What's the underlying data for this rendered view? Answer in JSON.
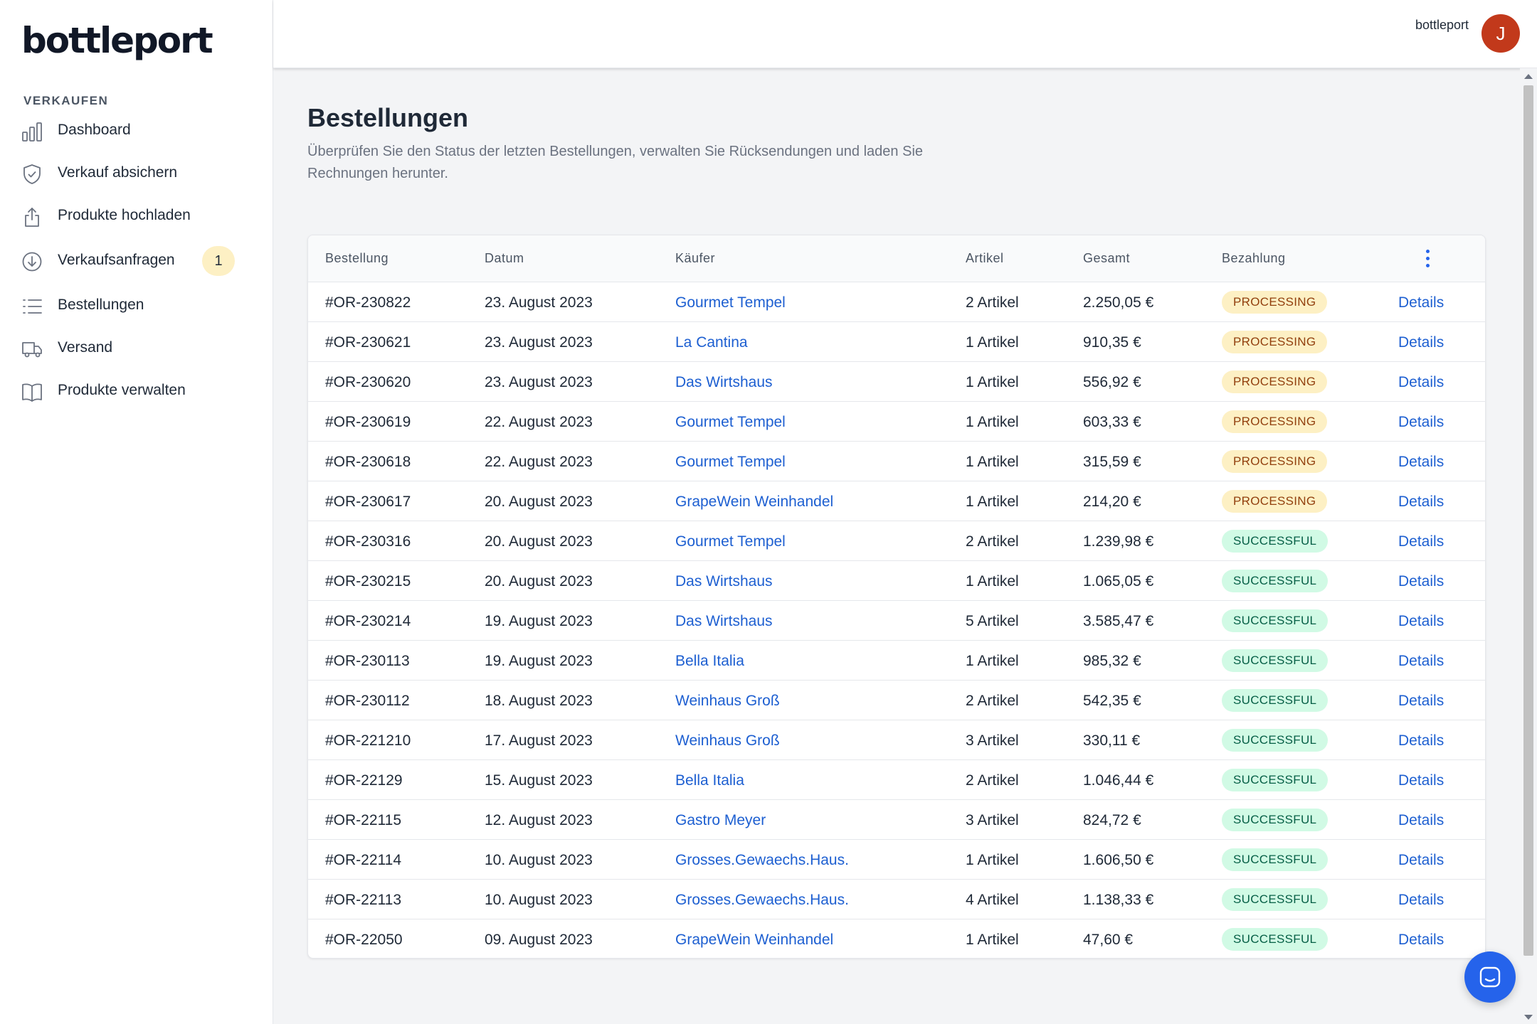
{
  "app": {
    "logo": "bottleport",
    "user_name": "bottleport",
    "avatar_initial": "J",
    "accent_color": "#2563eb",
    "avatar_color": "#c2391b"
  },
  "sidebar": {
    "section_label": "VERKAUFEN",
    "items": [
      {
        "label": "Dashboard",
        "icon": "bar-chart-icon"
      },
      {
        "label": "Verkauf absichern",
        "icon": "shield-check-icon"
      },
      {
        "label": "Produkte hochladen",
        "icon": "upload-icon"
      },
      {
        "label": "Verkaufsanfragen",
        "icon": "arrow-down-circle-icon",
        "badge": "1"
      },
      {
        "label": "Bestellungen",
        "icon": "list-icon"
      },
      {
        "label": "Versand",
        "icon": "truck-icon"
      },
      {
        "label": "Produkte verwalten",
        "icon": "book-icon"
      }
    ]
  },
  "page": {
    "title": "Bestellungen",
    "description": "Überprüfen Sie den Status der letzten Bestellungen, verwalten Sie Rücksendungen und laden Sie Rechnungen herunter."
  },
  "table": {
    "headers": {
      "order": "Bestellung",
      "date": "Datum",
      "buyer": "Käufer",
      "items": "Artikel",
      "total": "Gesamt",
      "payment": "Bezahlung"
    },
    "rows": [
      {
        "order": "#OR-230822",
        "date": "23. August 2023",
        "buyer": "Gourmet Tempel",
        "items": "2 Artikel",
        "total": "2.250,05 €",
        "status": "PROCESSING",
        "action": "Details"
      },
      {
        "order": "#OR-230621",
        "date": "23. August 2023",
        "buyer": "La Cantina",
        "items": "1 Artikel",
        "total": "910,35 €",
        "status": "PROCESSING",
        "action": "Details"
      },
      {
        "order": "#OR-230620",
        "date": "23. August 2023",
        "buyer": "Das Wirtshaus",
        "items": "1 Artikel",
        "total": "556,92 €",
        "status": "PROCESSING",
        "action": "Details"
      },
      {
        "order": "#OR-230619",
        "date": "22. August 2023",
        "buyer": "Gourmet Tempel",
        "items": "1 Artikel",
        "total": "603,33 €",
        "status": "PROCESSING",
        "action": "Details"
      },
      {
        "order": "#OR-230618",
        "date": "22. August 2023",
        "buyer": "Gourmet Tempel",
        "items": "1 Artikel",
        "total": "315,59 €",
        "status": "PROCESSING",
        "action": "Details"
      },
      {
        "order": "#OR-230617",
        "date": "20. August 2023",
        "buyer": "GrapeWein Weinhandel",
        "items": "1 Artikel",
        "total": "214,20 €",
        "status": "PROCESSING",
        "action": "Details"
      },
      {
        "order": "#OR-230316",
        "date": "20. August 2023",
        "buyer": "Gourmet Tempel",
        "items": "2 Artikel",
        "total": "1.239,98 €",
        "status": "SUCCESSFUL",
        "action": "Details"
      },
      {
        "order": "#OR-230215",
        "date": "20. August 2023",
        "buyer": "Das Wirtshaus",
        "items": "1 Artikel",
        "total": "1.065,05 €",
        "status": "SUCCESSFUL",
        "action": "Details"
      },
      {
        "order": "#OR-230214",
        "date": "19. August 2023",
        "buyer": "Das Wirtshaus",
        "items": "5 Artikel",
        "total": "3.585,47 €",
        "status": "SUCCESSFUL",
        "action": "Details"
      },
      {
        "order": "#OR-230113",
        "date": "19. August 2023",
        "buyer": "Bella Italia",
        "items": "1 Artikel",
        "total": "985,32 €",
        "status": "SUCCESSFUL",
        "action": "Details"
      },
      {
        "order": "#OR-230112",
        "date": "18. August 2023",
        "buyer": "Weinhaus Groß",
        "items": "2 Artikel",
        "total": "542,35 €",
        "status": "SUCCESSFUL",
        "action": "Details"
      },
      {
        "order": "#OR-221210",
        "date": "17. August 2023",
        "buyer": "Weinhaus Groß",
        "items": "3 Artikel",
        "total": "330,11 €",
        "status": "SUCCESSFUL",
        "action": "Details"
      },
      {
        "order": "#OR-22129",
        "date": "15. August 2023",
        "buyer": "Bella Italia",
        "items": "2 Artikel",
        "total": "1.046,44 €",
        "status": "SUCCESSFUL",
        "action": "Details"
      },
      {
        "order": "#OR-22115",
        "date": "12. August 2023",
        "buyer": "Gastro Meyer",
        "items": "3 Artikel",
        "total": "824,72 €",
        "status": "SUCCESSFUL",
        "action": "Details"
      },
      {
        "order": "#OR-22114",
        "date": "10. August 2023",
        "buyer": "Grosses.Gewaechs.Haus.",
        "items": "1 Artikel",
        "total": "1.606,50 €",
        "status": "SUCCESSFUL",
        "action": "Details"
      },
      {
        "order": "#OR-22113",
        "date": "10. August 2023",
        "buyer": "Grosses.Gewaechs.Haus.",
        "items": "4 Artikel",
        "total": "1.138,33 €",
        "status": "SUCCESSFUL",
        "action": "Details"
      },
      {
        "order": "#OR-22050",
        "date": "09. August 2023",
        "buyer": "GrapeWein Weinhandel",
        "items": "1 Artikel",
        "total": "47,60 €",
        "status": "SUCCESSFUL",
        "action": "Details"
      }
    ],
    "status_colors": {
      "PROCESSING": {
        "bg": "#fdf0c4",
        "fg": "#92400e"
      },
      "SUCCESSFUL": {
        "bg": "#d1fae5",
        "fg": "#065f46"
      }
    }
  },
  "chat": {
    "icon": "chat-icon"
  }
}
